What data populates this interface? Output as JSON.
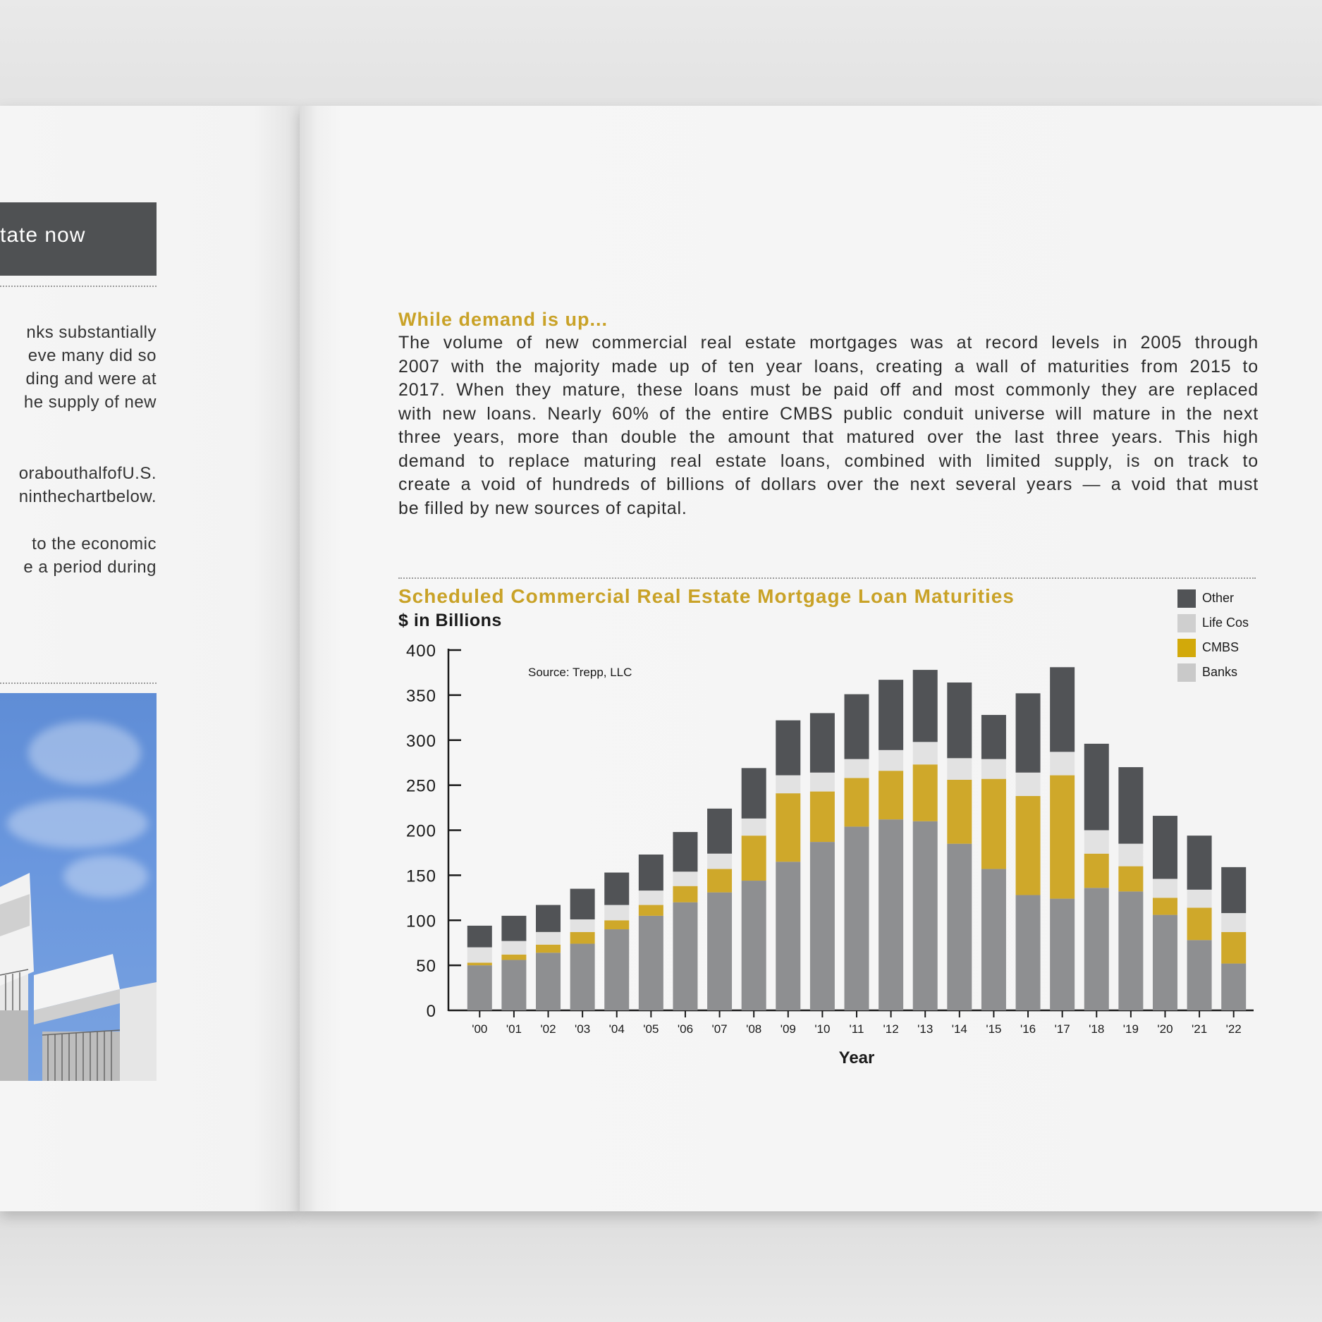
{
  "left_page": {
    "banner_text": "tate now",
    "paragraph_1": [
      "nks substantially",
      "eve many did so",
      "ding and were at",
      "he supply of new"
    ],
    "paragraph_2": [
      "orabouthalfofU.S.",
      "ninthechartbelow."
    ],
    "paragraph_3": [
      "to the economic",
      "e a period during"
    ]
  },
  "right_page": {
    "heading": "While demand is up...",
    "paragraph_lines": [
      "The volume of new commercial real estate mortgages was at record levels in 2005 through",
      "2007 with the majority made up of ten year loans, creating a wall of maturities from 2015 to",
      "2017. When they mature, these loans must be paid off and most commonly they are replaced",
      "with new loans. Nearly 60% of the entire CMBS public conduit universe will mature in the next",
      "three years, more than double the amount that matured over the last three years. This high",
      "demand to replace maturing real estate loans, combined with limited supply, is on track to",
      "create a void of hundreds of billions of dollars over the next several years — a void that must",
      "be filled by new sources of capital."
    ]
  },
  "chart_data": {
    "type": "bar",
    "stacked": true,
    "title": "Scheduled Commercial Real Estate Mortgage Loan Maturities",
    "ylabel": "$ in Billions",
    "xlabel": "Year",
    "source": "Source: Trepp, LLC",
    "ylim": [
      0,
      400
    ],
    "yticks": [
      0,
      50,
      100,
      150,
      200,
      250,
      300,
      350,
      400
    ],
    "legend_position": "top-right",
    "categories": [
      "'00",
      "'01",
      "'02",
      "'03",
      "'04",
      "'05",
      "'06",
      "'07",
      "'08",
      "'09",
      "'10",
      "'11",
      "'12",
      "'13",
      "'14",
      "'15",
      "'16",
      "'17",
      "'18",
      "'19",
      "'20",
      "'21",
      "'22"
    ],
    "series": [
      {
        "name": "Banks",
        "color": "#8e8f91",
        "values": [
          50,
          56,
          64,
          74,
          90,
          105,
          120,
          131,
          144,
          165,
          187,
          204,
          212,
          210,
          185,
          157,
          128,
          124,
          136,
          132,
          106,
          78,
          52
        ]
      },
      {
        "name": "CMBS",
        "color": "#cfa82a",
        "values": [
          3,
          6,
          9,
          13,
          10,
          12,
          18,
          26,
          50,
          76,
          56,
          54,
          54,
          63,
          71,
          100,
          110,
          137,
          38,
          28,
          19,
          36,
          35
        ]
      },
      {
        "name": "Life Cos",
        "color": "#e2e2e2",
        "values": [
          17,
          15,
          14,
          14,
          17,
          16,
          16,
          17,
          19,
          20,
          21,
          21,
          23,
          25,
          24,
          22,
          26,
          26,
          26,
          25,
          21,
          20,
          21
        ]
      },
      {
        "name": "Other",
        "color": "#515356",
        "values": [
          24,
          28,
          30,
          34,
          36,
          40,
          44,
          50,
          56,
          61,
          66,
          72,
          78,
          80,
          84,
          49,
          88,
          94,
          96,
          85,
          70,
          60,
          51
        ]
      }
    ],
    "legend_order": [
      "Other",
      "Life Cos",
      "CMBS",
      "Banks"
    ],
    "legend_colors": {
      "Other": "#515356",
      "Life Cos": "#cfcfcf",
      "CMBS": "#d2a90a",
      "Banks": "#c9c9c9"
    }
  }
}
